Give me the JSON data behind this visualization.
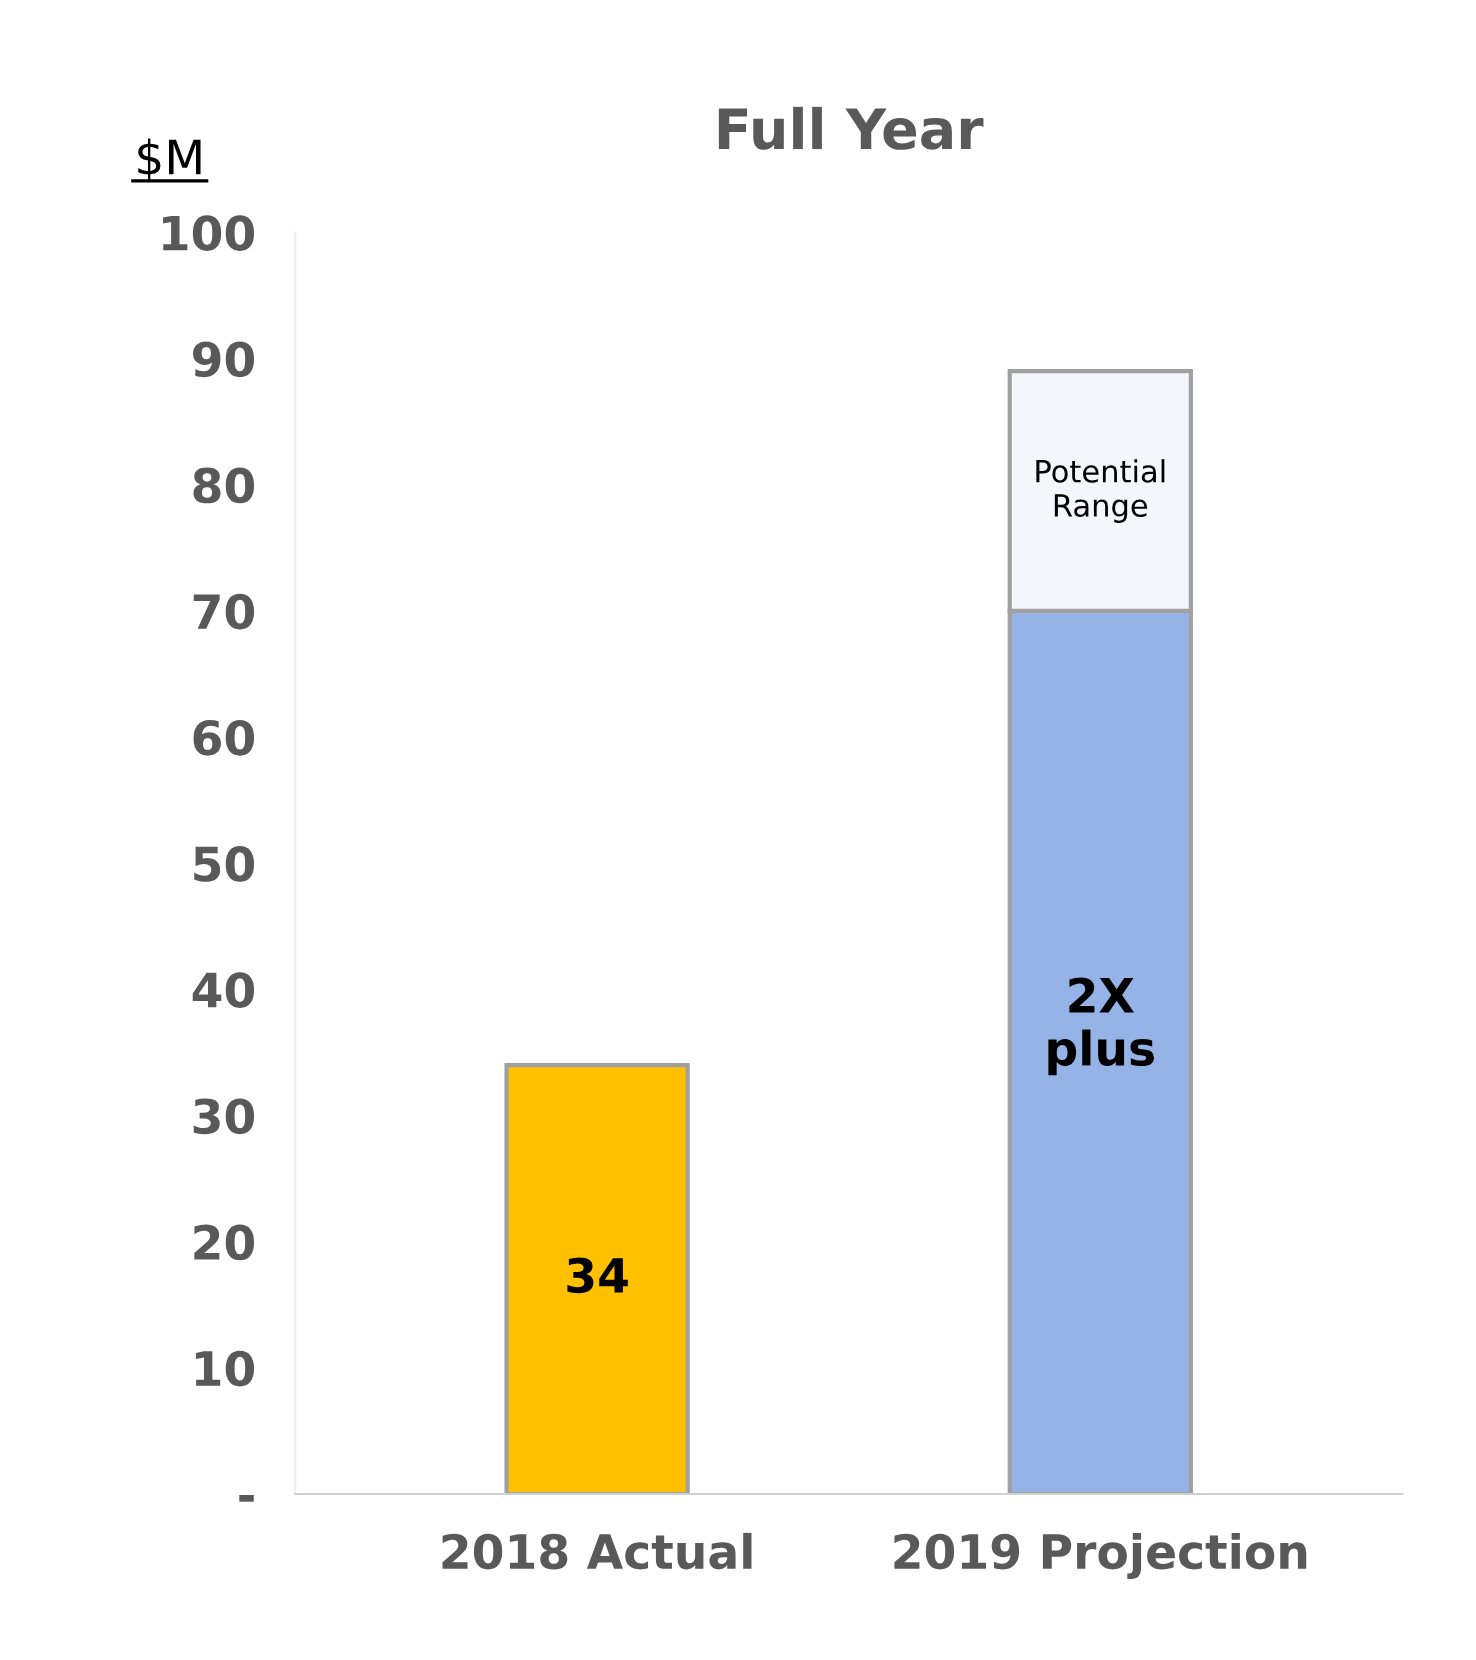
{
  "chart_data": {
    "type": "bar",
    "stacked": true,
    "title": "Full Year",
    "ylabel": "$M",
    "categories": [
      "2018 Actual",
      "2019 Projection"
    ],
    "series": [
      {
        "colors": [
          "#ffc000",
          "#95b3e7"
        ],
        "values": [
          34,
          70
        ],
        "value_labels": [
          "34",
          null
        ]
      },
      {
        "color": "#f4f6fb",
        "values": [
          null,
          19
        ]
      }
    ],
    "annotations": [
      "2X\nplus",
      "Potential\nRange"
    ],
    "ylim": [
      0,
      100
    ],
    "yticks": [
      {
        "value": 0,
        "label": "-"
      },
      10,
      20,
      30,
      40,
      50,
      60,
      70,
      80,
      90,
      100
    ],
    "grid": false,
    "legend": false
  }
}
